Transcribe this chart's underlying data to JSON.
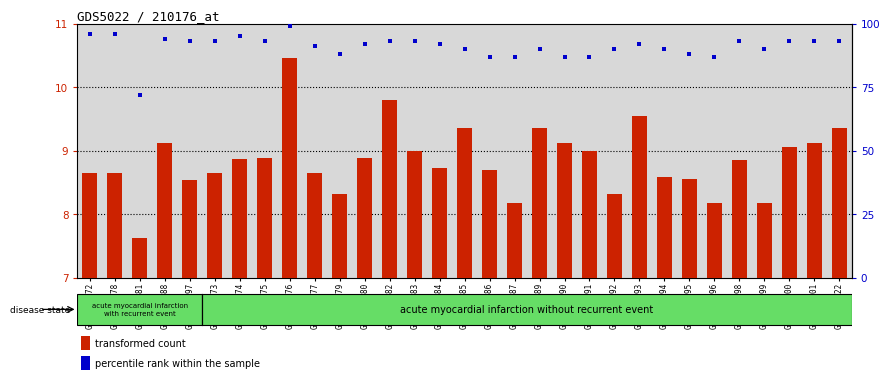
{
  "title": "GDS5022 / 210176_at",
  "samples": [
    "GSM1167072",
    "GSM1167078",
    "GSM1167081",
    "GSM1167088",
    "GSM1167097",
    "GSM1167073",
    "GSM1167074",
    "GSM1167075",
    "GSM1167076",
    "GSM1167077",
    "GSM1167079",
    "GSM1167080",
    "GSM1167082",
    "GSM1167083",
    "GSM1167084",
    "GSM1167085",
    "GSM1167086",
    "GSM1167087",
    "GSM1167089",
    "GSM1167090",
    "GSM1167091",
    "GSM1167092",
    "GSM1167093",
    "GSM1167094",
    "GSM1167095",
    "GSM1167096",
    "GSM1167098",
    "GSM1167099",
    "GSM1167100",
    "GSM1167101",
    "GSM1167122"
  ],
  "bar_values": [
    8.65,
    8.65,
    7.62,
    9.12,
    8.53,
    8.65,
    8.87,
    8.88,
    10.45,
    8.65,
    8.32,
    8.88,
    9.8,
    9.0,
    8.72,
    9.35,
    8.7,
    8.17,
    9.35,
    9.12,
    9.0,
    8.32,
    9.55,
    8.58,
    8.55,
    8.17,
    8.85,
    8.17,
    9.05,
    9.12,
    9.35
  ],
  "percentile_values": [
    96,
    96,
    72,
    94,
    93,
    93,
    95,
    93,
    99,
    91,
    88,
    92,
    93,
    93,
    92,
    90,
    87,
    87,
    90,
    87,
    87,
    90,
    92,
    90,
    88,
    87,
    93,
    90,
    93,
    93,
    93
  ],
  "ylim_left": [
    7,
    11
  ],
  "ylim_right": [
    0,
    100
  ],
  "yticks_left": [
    7,
    8,
    9,
    10,
    11
  ],
  "yticks_right": [
    0,
    25,
    50,
    75,
    100
  ],
  "bar_color": "#CC2200",
  "dot_color": "#0000CC",
  "bg_color": "#D8D8D8",
  "group_color": "#66DD66",
  "group1_count": 5,
  "group1_label": "acute myocardial infarction\nwith recurrent event",
  "group2_label": "acute myocardial infarction without recurrent event",
  "legend_bar_label": "transformed count",
  "legend_dot_label": "percentile rank within the sample",
  "disease_state_label": "disease state"
}
